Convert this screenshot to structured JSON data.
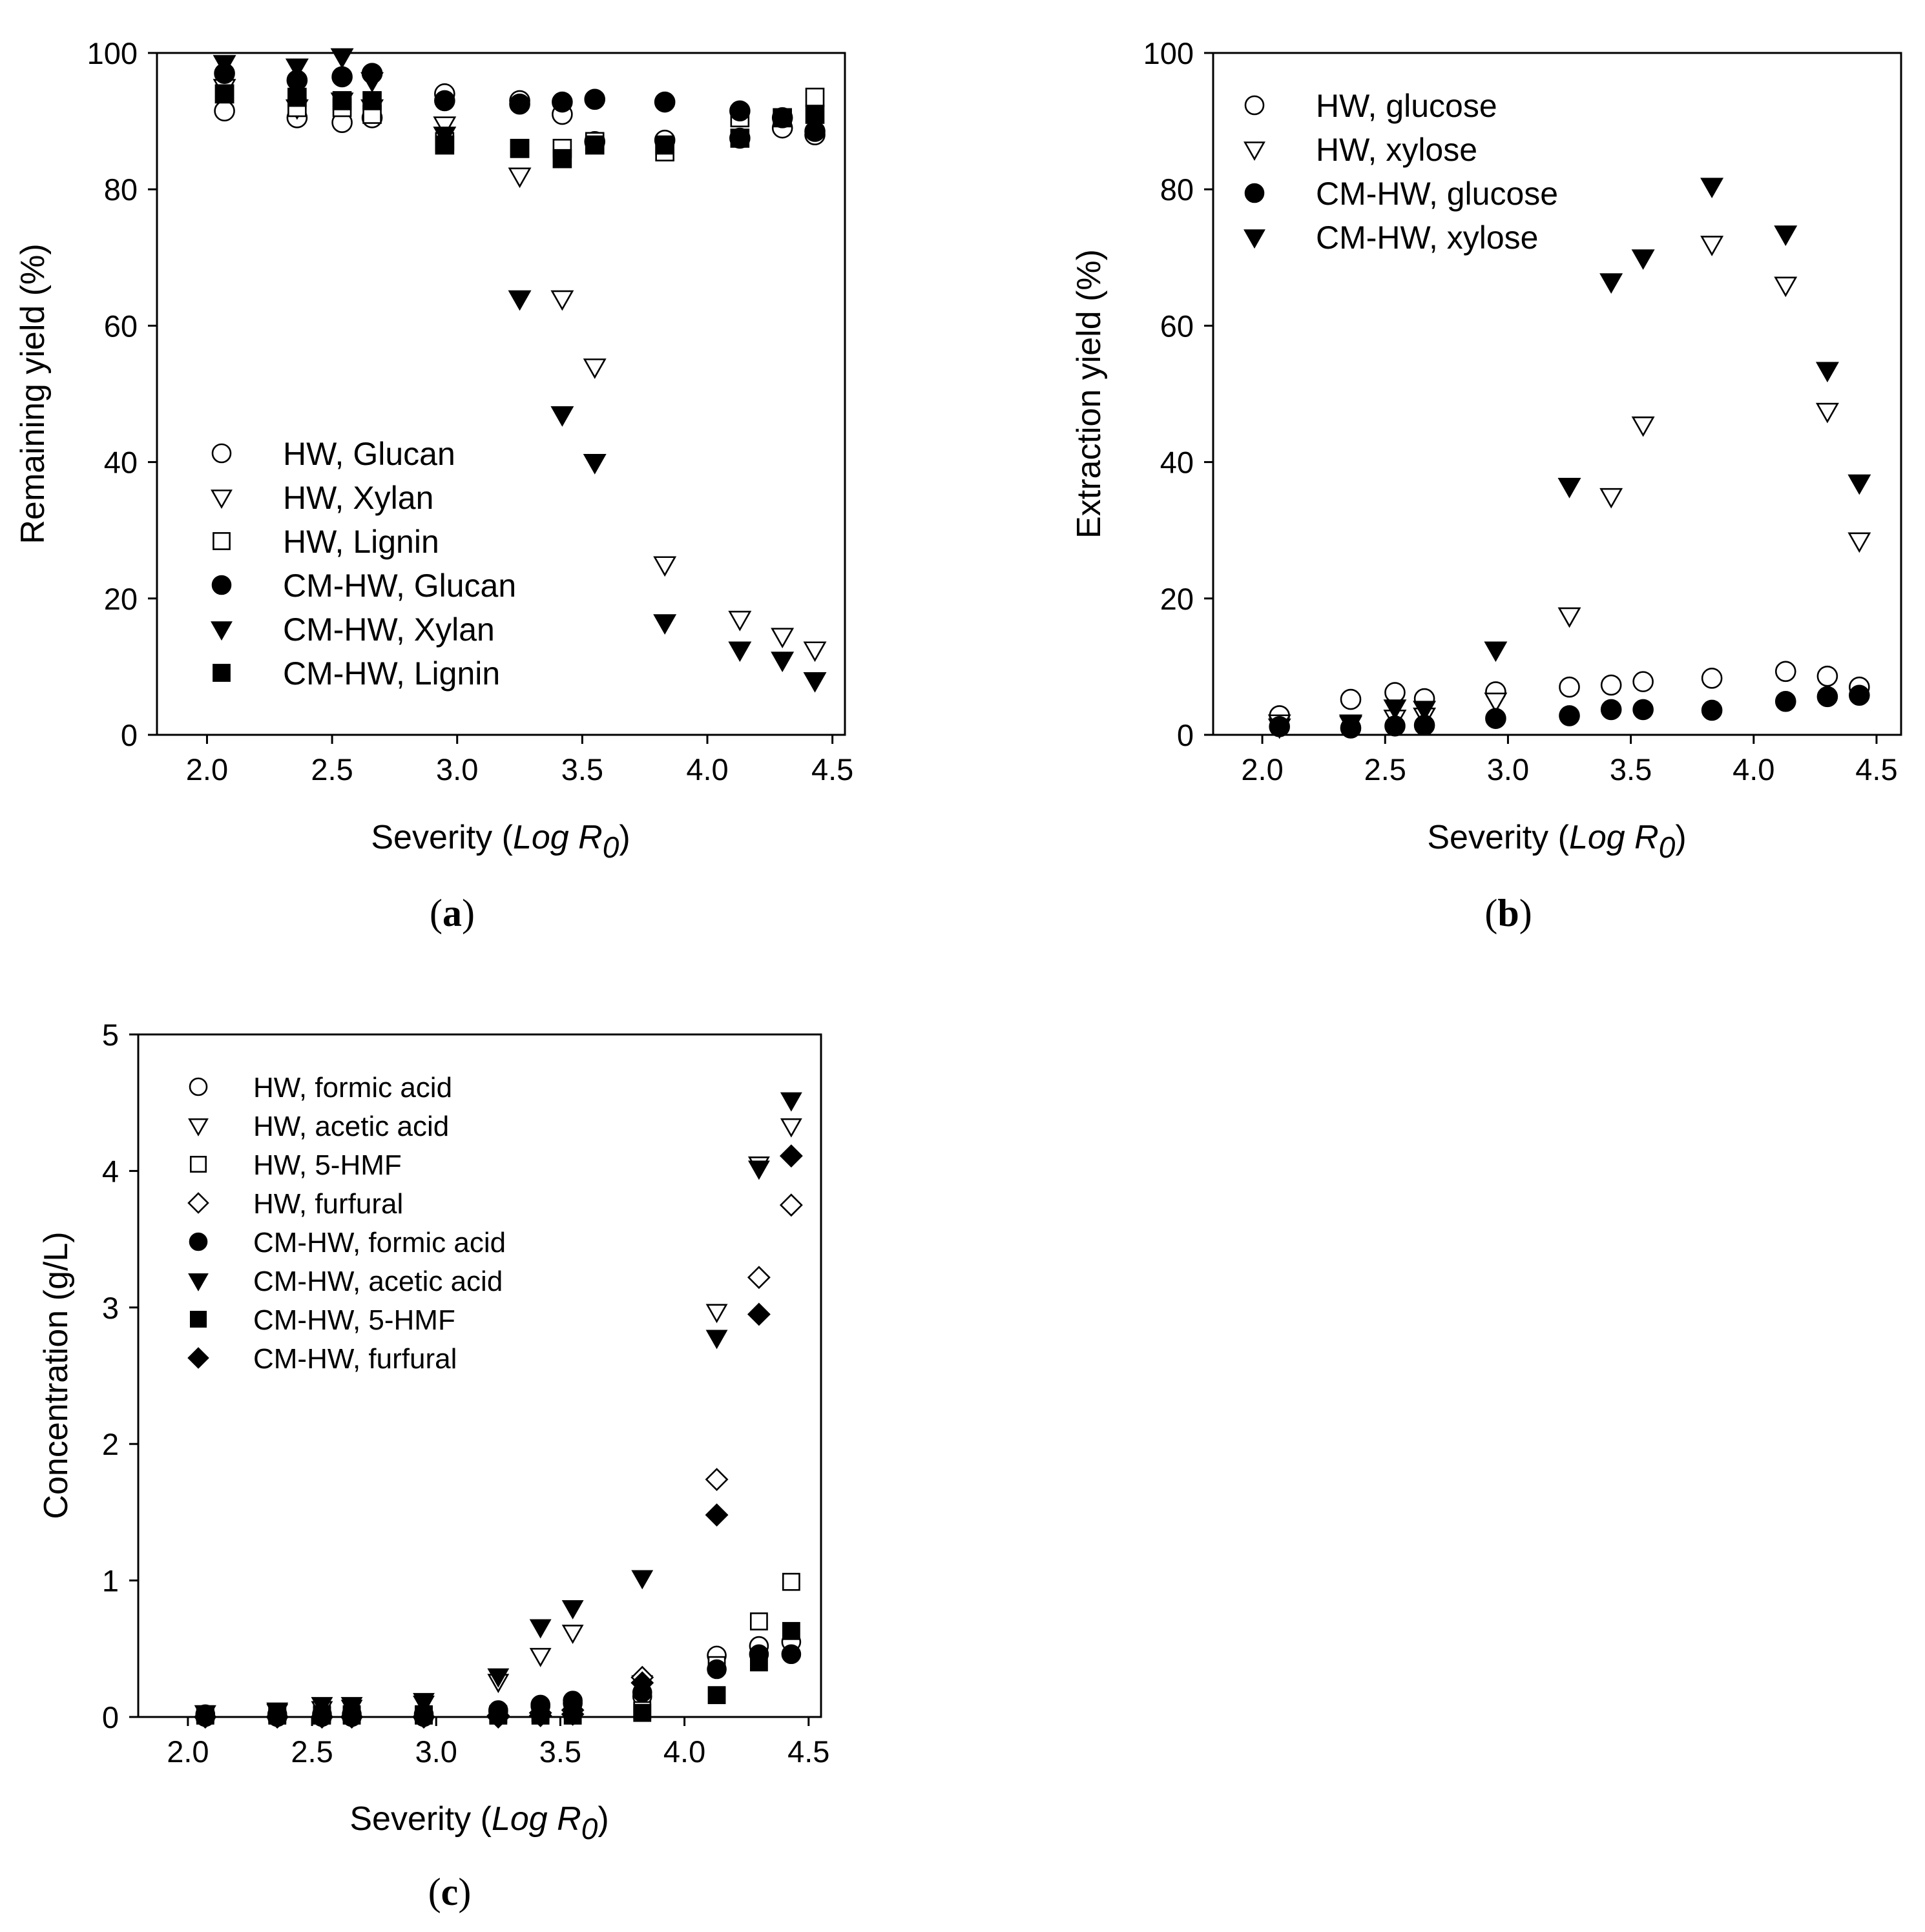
{
  "chart_data": [
    {
      "type": "scatter",
      "panel_label": "a",
      "title": "",
      "xlabel": "Severity (",
      "xlabel_italic": "Log R",
      "xlabel_sub": "0",
      "xlabel_close": ")",
      "ylabel": "Remaining yield (%)",
      "xlim": [
        1.8,
        4.55
      ],
      "ylim": [
        0,
        100
      ],
      "xticks": [
        "2.0",
        "2.5",
        "3.0",
        "3.5",
        "4.0",
        "4.5"
      ],
      "yticks": [
        "0",
        "20",
        "40",
        "60",
        "80",
        "100"
      ],
      "legend_position": "center-left",
      "series": [
        {
          "name": "HW, Glucan",
          "marker": "circle",
          "filled": false,
          "x": [
            2.07,
            2.36,
            2.54,
            2.66,
            2.95,
            3.25,
            3.42,
            3.55,
            3.83,
            4.13,
            4.3,
            4.43
          ],
          "y": [
            91.5,
            90.5,
            89.8,
            90.5,
            94,
            93,
            91,
            87,
            87.2,
            87.5,
            89,
            88
          ]
        },
        {
          "name": "HW, Xylan",
          "marker": "triangle-down",
          "filled": false,
          "x": [
            2.07,
            2.36,
            2.54,
            2.66,
            2.95,
            3.25,
            3.42,
            3.55,
            3.83,
            4.13,
            4.3,
            4.43
          ],
          "y": [
            95,
            92,
            93,
            92,
            89.5,
            82,
            64,
            54,
            25,
            17,
            14.5,
            12.5
          ]
        },
        {
          "name": "HW, Lignin",
          "marker": "square",
          "filled": false,
          "x": [
            2.07,
            2.36,
            2.54,
            2.66,
            2.95,
            3.25,
            3.42,
            3.55,
            3.83,
            4.13,
            4.3,
            4.43
          ],
          "y": [
            94,
            92,
            92,
            91,
            87,
            86,
            86,
            87,
            85.5,
            90.5,
            90.5,
            93.5
          ]
        },
        {
          "name": "CM-HW, Glucan",
          "marker": "circle",
          "filled": true,
          "x": [
            2.07,
            2.36,
            2.54,
            2.66,
            2.95,
            3.25,
            3.42,
            3.55,
            3.83,
            4.13,
            4.3,
            4.43
          ],
          "y": [
            97,
            96,
            96.5,
            97,
            93,
            92.5,
            92.8,
            93.2,
            92.8,
            91.5,
            90.5,
            88.5
          ]
        },
        {
          "name": "CM-HW, Xylan",
          "marker": "triangle-down",
          "filled": true,
          "x": [
            2.07,
            2.36,
            2.54,
            2.66,
            2.95,
            3.25,
            3.42,
            3.55,
            3.83,
            4.13,
            4.3,
            4.43
          ],
          "y": [
            98.5,
            98,
            99.5,
            96,
            88,
            64,
            47,
            40,
            16.5,
            12.5,
            11,
            8
          ]
        },
        {
          "name": "CM-HW, Lignin",
          "marker": "square",
          "filled": true,
          "x": [
            2.07,
            2.36,
            2.54,
            2.66,
            2.95,
            3.25,
            3.42,
            3.55,
            3.83,
            4.13,
            4.3,
            4.43
          ],
          "y": [
            94,
            93.5,
            93,
            93,
            86.5,
            86,
            84.5,
            86.5,
            86.5,
            87.5,
            90.5,
            91
          ]
        }
      ]
    },
    {
      "type": "scatter",
      "panel_label": "b",
      "title": "",
      "xlabel": "Severity (",
      "xlabel_italic": "Log R",
      "xlabel_sub": "0",
      "xlabel_close": ")",
      "ylabel": "Extraction yield (%)",
      "xlim": [
        1.8,
        4.6
      ],
      "ylim": [
        0,
        100
      ],
      "xticks": [
        "2.0",
        "2.5",
        "3.0",
        "3.5",
        "4.0",
        "4.5"
      ],
      "yticks": [
        "0",
        "20",
        "40",
        "60",
        "80",
        "100"
      ],
      "legend_position": "top-left",
      "series": [
        {
          "name": "HW, glucose",
          "marker": "circle",
          "filled": false,
          "x": [
            2.07,
            2.36,
            2.54,
            2.66,
            2.95,
            3.25,
            3.42,
            3.55,
            3.83,
            4.13,
            4.3,
            4.43
          ],
          "y": [
            2.8,
            5.2,
            6.2,
            5.3,
            6.3,
            7,
            7.3,
            7.8,
            8.3,
            9.3,
            8.6,
            7
          ]
        },
        {
          "name": "HW, xylose",
          "marker": "triangle-down",
          "filled": false,
          "x": [
            2.07,
            2.36,
            2.54,
            2.66,
            2.95,
            3.25,
            3.42,
            3.55,
            3.83,
            4.13,
            4.3,
            4.43
          ],
          "y": [
            1.8,
            1.6,
            2.5,
            2.8,
            5,
            17.5,
            35,
            45.5,
            72,
            66,
            47.5,
            28.5
          ]
        },
        {
          "name": "CM-HW, glucose",
          "marker": "circle",
          "filled": true,
          "x": [
            2.07,
            2.36,
            2.54,
            2.66,
            2.95,
            3.25,
            3.42,
            3.55,
            3.83,
            4.13,
            4.3,
            4.43
          ],
          "y": [
            1.2,
            1,
            1.3,
            1.4,
            2.4,
            2.8,
            3.7,
            3.7,
            3.6,
            4.9,
            5.6,
            5.8
          ]
        },
        {
          "name": "CM-HW, xylose",
          "marker": "triangle-down",
          "filled": true,
          "x": [
            2.07,
            2.36,
            2.54,
            2.66,
            2.95,
            3.25,
            3.42,
            3.55,
            3.83,
            4.13,
            4.3,
            4.43
          ],
          "y": [
            1.2,
            1.8,
            4,
            3.8,
            12.5,
            36.5,
            66.5,
            70,
            80.5,
            73.5,
            53.5,
            37
          ]
        }
      ]
    },
    {
      "type": "scatter",
      "panel_label": "c",
      "title": "",
      "xlabel": "Severity (",
      "xlabel_italic": "Log R",
      "xlabel_sub": "0",
      "xlabel_close": ")",
      "ylabel": "Concentration (g/L)",
      "xlim": [
        1.8,
        4.55
      ],
      "ylim": [
        0,
        5
      ],
      "xticks": [
        "2.0",
        "2.5",
        "3.0",
        "3.5",
        "4.0",
        "4.5"
      ],
      "yticks": [
        "0",
        "1",
        "2",
        "3",
        "4",
        "5"
      ],
      "legend_position": "top-left",
      "series": [
        {
          "name": "HW, formic acid",
          "marker": "circle",
          "filled": false,
          "x": [
            2.07,
            2.36,
            2.54,
            2.66,
            2.95,
            3.25,
            3.42,
            3.55,
            3.83,
            4.13,
            4.3,
            4.43
          ],
          "y": [
            0.02,
            0.02,
            0.02,
            0.02,
            0.02,
            0.05,
            0.08,
            0.1,
            0.15,
            0.45,
            0.52,
            0.55
          ]
        },
        {
          "name": "HW, acetic acid",
          "marker": "triangle-down",
          "filled": false,
          "x": [
            2.07,
            2.36,
            2.54,
            2.66,
            2.95,
            3.25,
            3.42,
            3.55,
            3.83,
            4.13,
            4.3,
            4.43
          ],
          "y": [
            0.03,
            0.05,
            0.06,
            0.07,
            0.1,
            0.26,
            0.45,
            0.62,
            0.25,
            2.97,
            4.05,
            4.33
          ]
        },
        {
          "name": "HW, 5-HMF",
          "marker": "square",
          "filled": false,
          "x": [
            2.07,
            2.36,
            2.54,
            2.66,
            2.95,
            3.25,
            3.42,
            3.55,
            3.83,
            4.13,
            4.3,
            4.43
          ],
          "y": [
            0.02,
            0.02,
            0.02,
            0.02,
            0.02,
            0.02,
            0.03,
            0.05,
            0.05,
            0.38,
            0.7,
            0.99
          ]
        },
        {
          "name": "HW, furfural",
          "marker": "diamond",
          "filled": false,
          "x": [
            2.07,
            2.36,
            2.54,
            2.66,
            2.95,
            3.25,
            3.42,
            3.55,
            3.83,
            4.13,
            4.3,
            4.43
          ],
          "y": [
            0,
            0,
            0,
            0,
            0,
            0.01,
            0.03,
            0.05,
            0.29,
            1.74,
            3.22,
            3.75
          ]
        },
        {
          "name": "CM-HW, formic acid",
          "marker": "circle",
          "filled": true,
          "x": [
            2.07,
            2.36,
            2.54,
            2.66,
            2.95,
            3.25,
            3.42,
            3.55,
            3.83,
            4.13,
            4.3,
            4.43
          ],
          "y": [
            0,
            0,
            0,
            0,
            0,
            0.04,
            0.09,
            0.12,
            0.18,
            0.35,
            0.46,
            0.46
          ]
        },
        {
          "name": "CM-HW, acetic acid",
          "marker": "triangle-down",
          "filled": true,
          "x": [
            2.07,
            2.36,
            2.54,
            2.66,
            2.95,
            3.25,
            3.42,
            3.55,
            3.83,
            4.13,
            4.3,
            4.43
          ],
          "y": [
            0.03,
            0.04,
            0.09,
            0.09,
            0.12,
            0.3,
            0.66,
            0.8,
            1.02,
            2.78,
            4.02,
            4.52
          ]
        },
        {
          "name": "CM-HW, 5-HMF",
          "marker": "square",
          "filled": true,
          "x": [
            2.07,
            2.36,
            2.54,
            2.66,
            2.95,
            3.25,
            3.42,
            3.55,
            3.83,
            4.13,
            4.3,
            4.43
          ],
          "y": [
            0.01,
            0.01,
            0.01,
            0.01,
            0.01,
            0.01,
            0.01,
            0.01,
            0.03,
            0.16,
            0.4,
            0.63
          ]
        },
        {
          "name": "CM-HW, furfural",
          "marker": "diamond",
          "filled": true,
          "x": [
            2.07,
            2.36,
            2.54,
            2.66,
            2.95,
            3.25,
            3.42,
            3.55,
            3.83,
            4.13,
            4.3,
            4.43
          ],
          "y": [
            0,
            0,
            0,
            0,
            0,
            0,
            0.01,
            0.02,
            0.25,
            1.48,
            2.95,
            4.11
          ]
        }
      ]
    }
  ]
}
